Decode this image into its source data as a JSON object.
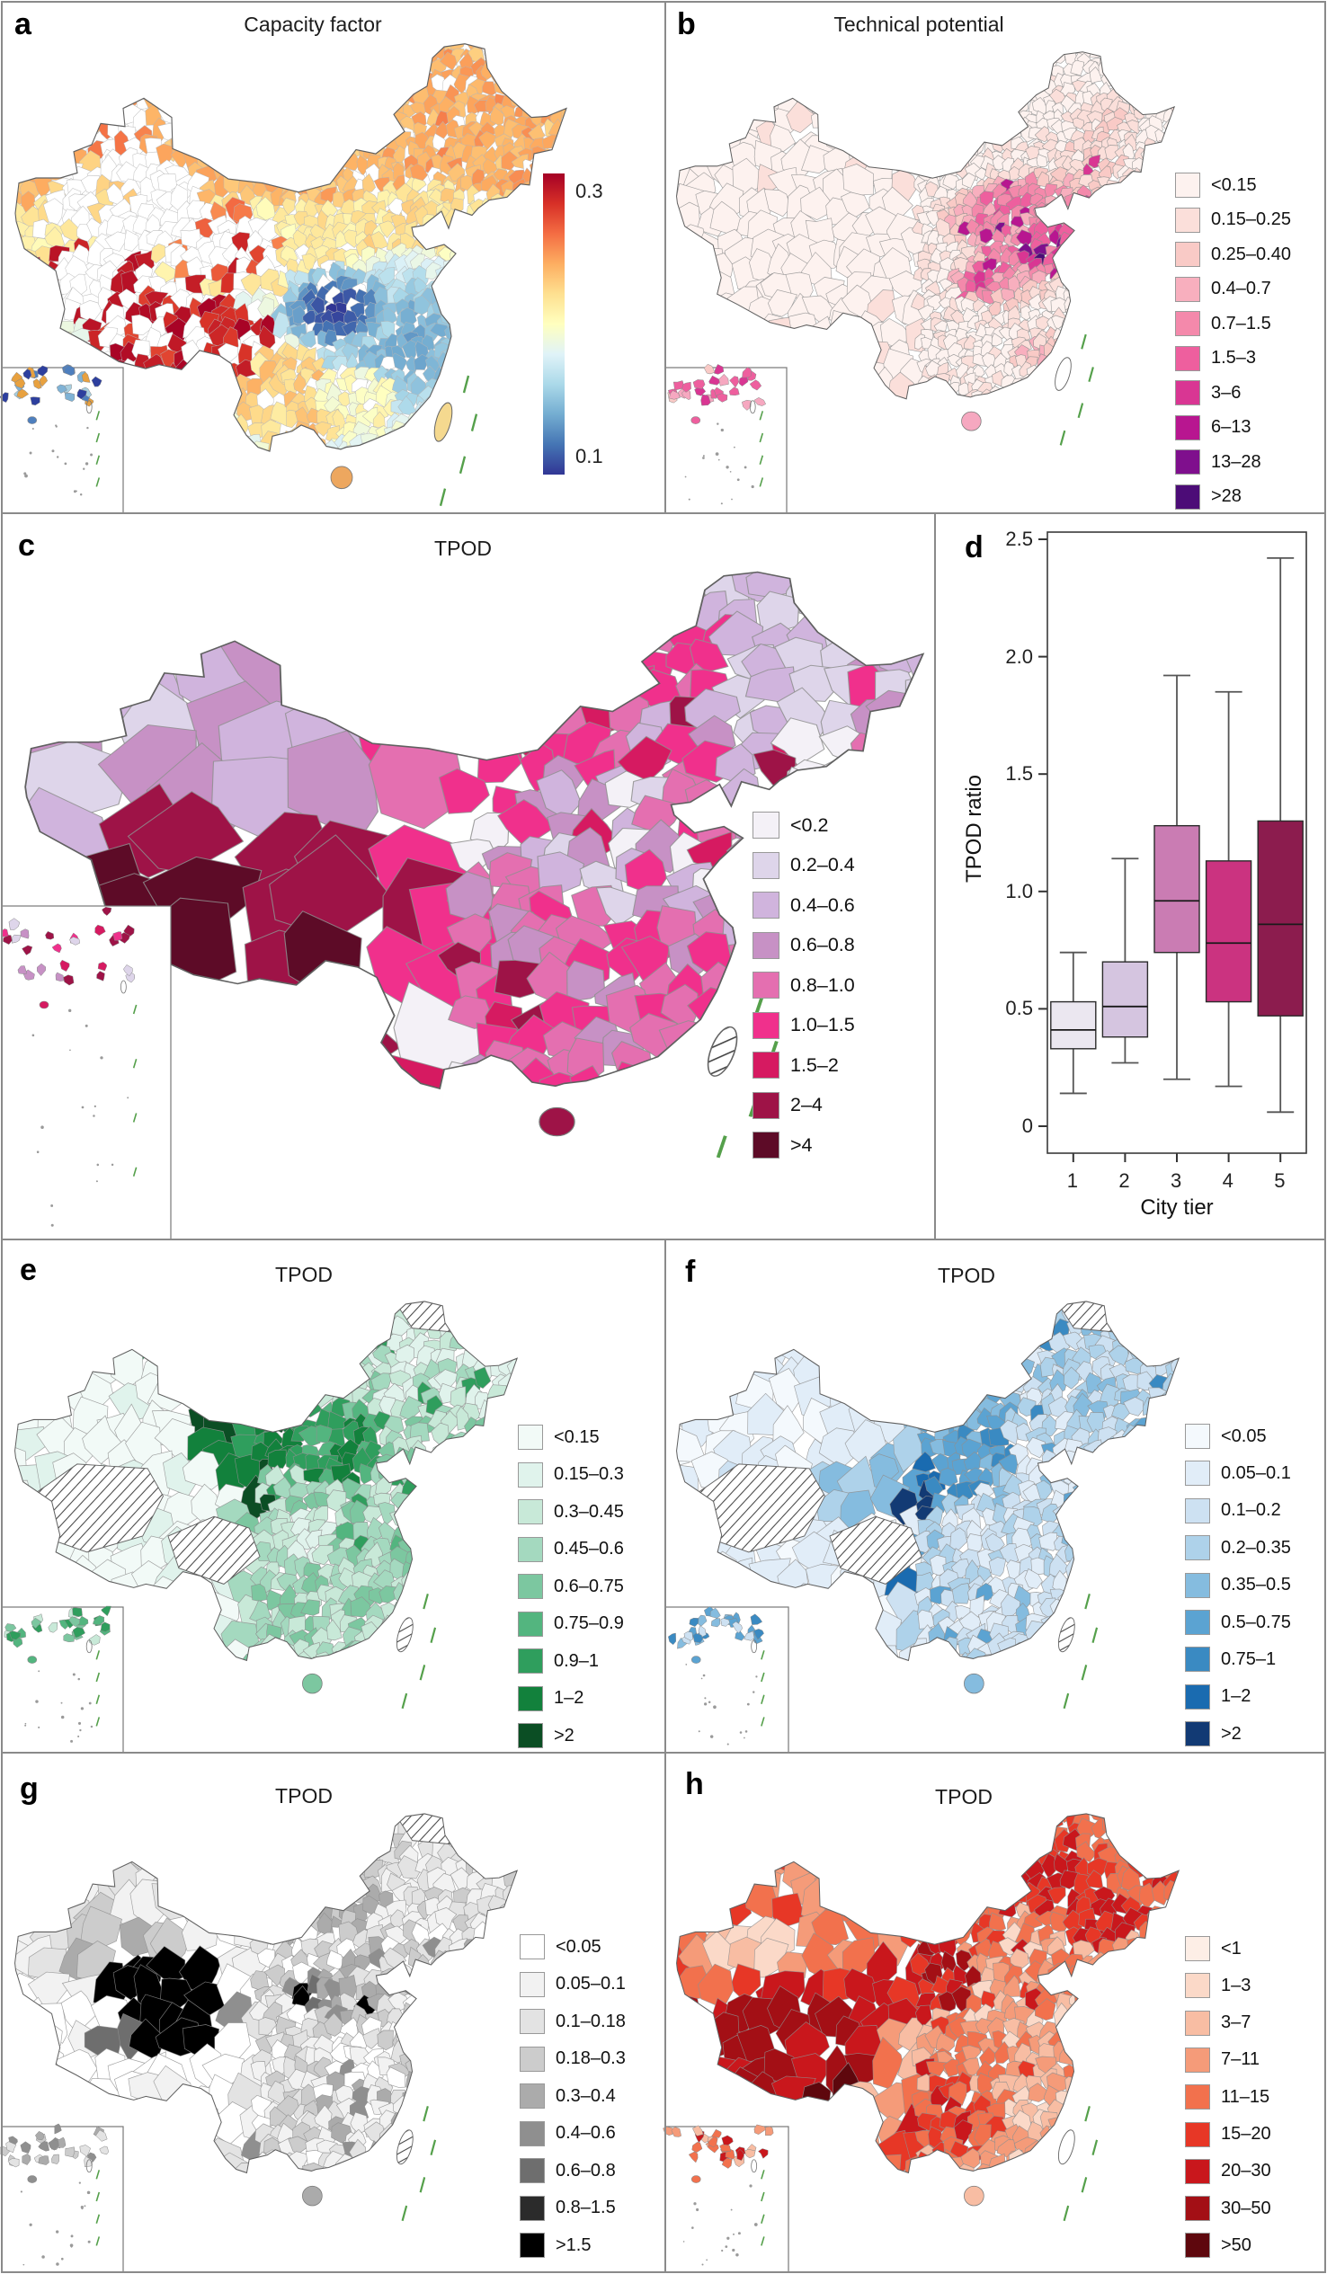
{
  "figure": {
    "panels": {
      "a": {
        "letter": "a",
        "title": "Capacity factor"
      },
      "b": {
        "letter": "b",
        "title": "Technical potential"
      },
      "c": {
        "letter": "c",
        "title": "TPOD"
      },
      "d": {
        "letter": "d"
      },
      "e": {
        "letter": "e",
        "title": "TPOD"
      },
      "f": {
        "letter": "f",
        "title": "TPOD"
      },
      "g": {
        "letter": "g",
        "title": "TPOD"
      },
      "h": {
        "letter": "h",
        "title": "TPOD"
      }
    },
    "colors": {
      "border": "#8a8a8a",
      "dash_line": "#55a04b",
      "map_outline": "#606060"
    }
  },
  "chart_data": [
    {
      "panel": "a",
      "type": "heatmap",
      "title": "Capacity factor",
      "colorbar": {
        "min": 0.1,
        "max": 0.3,
        "tick_labels": [
          "0.3",
          "0.1"
        ],
        "stops_top_to_bottom": [
          "#a50026",
          "#d73027",
          "#f46d43",
          "#fdae61",
          "#fee090",
          "#ffffbf",
          "#e0f3f8",
          "#abd9e9",
          "#74add1",
          "#4575b4",
          "#313695"
        ]
      },
      "notes": "continuous capacity-factor choropleth of China; high (red) in Tibet/Qinghai and north, low (blue) in Sichuan basin and southeast"
    },
    {
      "panel": "b",
      "type": "choropleth",
      "title": "Technical potential",
      "legend_labels": [
        "<0.15",
        "0.15–0.25",
        "0.25–0.40",
        "0.4–0.7",
        "0.7–1.5",
        "1.5–3",
        "3–6",
        "6–13",
        "13–28",
        ">28"
      ],
      "legend_colors": [
        "#fdf2ef",
        "#fbdfda",
        "#f9cac6",
        "#f8afbe",
        "#f489ab",
        "#ee5f9e",
        "#d93693",
        "#b81690",
        "#7f0f8d",
        "#4c0c77"
      ]
    },
    {
      "panel": "c",
      "type": "choropleth",
      "title": "TPOD",
      "legend_labels": [
        "<0.2",
        "0.2–0.4",
        "0.4–0.6",
        "0.6–0.8",
        "0.8–1.0",
        "1.0–1.5",
        "1.5–2",
        "2–4",
        ">4"
      ],
      "legend_colors": [
        "#f4f1f7",
        "#ded5ea",
        "#d0b4dd",
        "#c791c5",
        "#e46fb0",
        "#f0308c",
        "#d61a61",
        "#9e1347",
        "#5d0b27"
      ]
    },
    {
      "panel": "d",
      "type": "box",
      "xlabel": "City tier",
      "ylabel": "TPOD ratio",
      "ylim": [
        0,
        2.5
      ],
      "yticks": [
        "0",
        "0.5",
        "1.0",
        "1.5",
        "2.0",
        "2.5"
      ],
      "categories": [
        "1",
        "2",
        "3",
        "4",
        "5"
      ],
      "boxes": [
        {
          "tier": "1",
          "whislo": 0.14,
          "q1": 0.33,
          "med": 0.41,
          "q3": 0.53,
          "whishi": 0.74,
          "color": "#ebe7f0"
        },
        {
          "tier": "2",
          "whislo": 0.27,
          "q1": 0.38,
          "med": 0.51,
          "q3": 0.7,
          "whishi": 1.14,
          "color": "#d5c5e0"
        },
        {
          "tier": "3",
          "whislo": 0.2,
          "q1": 0.74,
          "med": 0.96,
          "q3": 1.28,
          "whishi": 1.92,
          "color": "#ca7cb3"
        },
        {
          "tier": "4",
          "whislo": 0.17,
          "q1": 0.53,
          "med": 0.78,
          "q3": 1.13,
          "whishi": 1.85,
          "color": "#cb3380"
        },
        {
          "tier": "5",
          "whislo": 0.06,
          "q1": 0.47,
          "med": 0.86,
          "q3": 1.3,
          "whishi": 2.42,
          "color": "#8c1c4e"
        }
      ]
    },
    {
      "panel": "e",
      "type": "choropleth",
      "title": "TPOD",
      "legend_labels": [
        "<0.15",
        "0.15–0.3",
        "0.3–0.45",
        "0.45–0.6",
        "0.6–0.75",
        "0.75–0.9",
        "0.9–1",
        "1–2",
        ">2"
      ],
      "legend_colors": [
        "#f2faf7",
        "#e0f3ec",
        "#c8e9d8",
        "#a4d9bf",
        "#7cc7a0",
        "#53b57f",
        "#2f9e5d",
        "#12813c",
        "#0b4e24"
      ]
    },
    {
      "panel": "f",
      "type": "choropleth",
      "title": "TPOD",
      "legend_labels": [
        "<0.05",
        "0.05–0.1",
        "0.1–0.2",
        "0.2–0.35",
        "0.35–0.5",
        "0.5–0.75",
        "0.75–1",
        "1–2",
        ">2"
      ],
      "legend_colors": [
        "#f4f9fd",
        "#e1edf8",
        "#cde1f2",
        "#aed2ea",
        "#85bcdf",
        "#5ba3d2",
        "#3a8ac2",
        "#1a6bb0",
        "#123a74"
      ]
    },
    {
      "panel": "g",
      "type": "choropleth",
      "title": "TPOD",
      "legend_labels": [
        "<0.05",
        "0.05–0.1",
        "0.1–0.18",
        "0.18–0.3",
        "0.3–0.4",
        "0.4–0.6",
        "0.6–0.8",
        "0.8–1.5",
        ">1.5"
      ],
      "legend_colors": [
        "#ffffff",
        "#f2f2f2",
        "#e3e3e3",
        "#cccccc",
        "#ababab",
        "#8f8f8f",
        "#6e6e6e",
        "#2b2b2b",
        "#000000"
      ]
    },
    {
      "panel": "h",
      "type": "choropleth",
      "title": "TPOD",
      "legend_labels": [
        "<1",
        "1–3",
        "3–7",
        "7–11",
        "11–15",
        "15–20",
        "20–30",
        "30–50",
        ">50"
      ],
      "legend_colors": [
        "#fdeee6",
        "#fbd9c8",
        "#f8bda3",
        "#f59b79",
        "#f2714d",
        "#e73726",
        "#c9171c",
        "#a30f15",
        "#5e070d"
      ]
    }
  ]
}
